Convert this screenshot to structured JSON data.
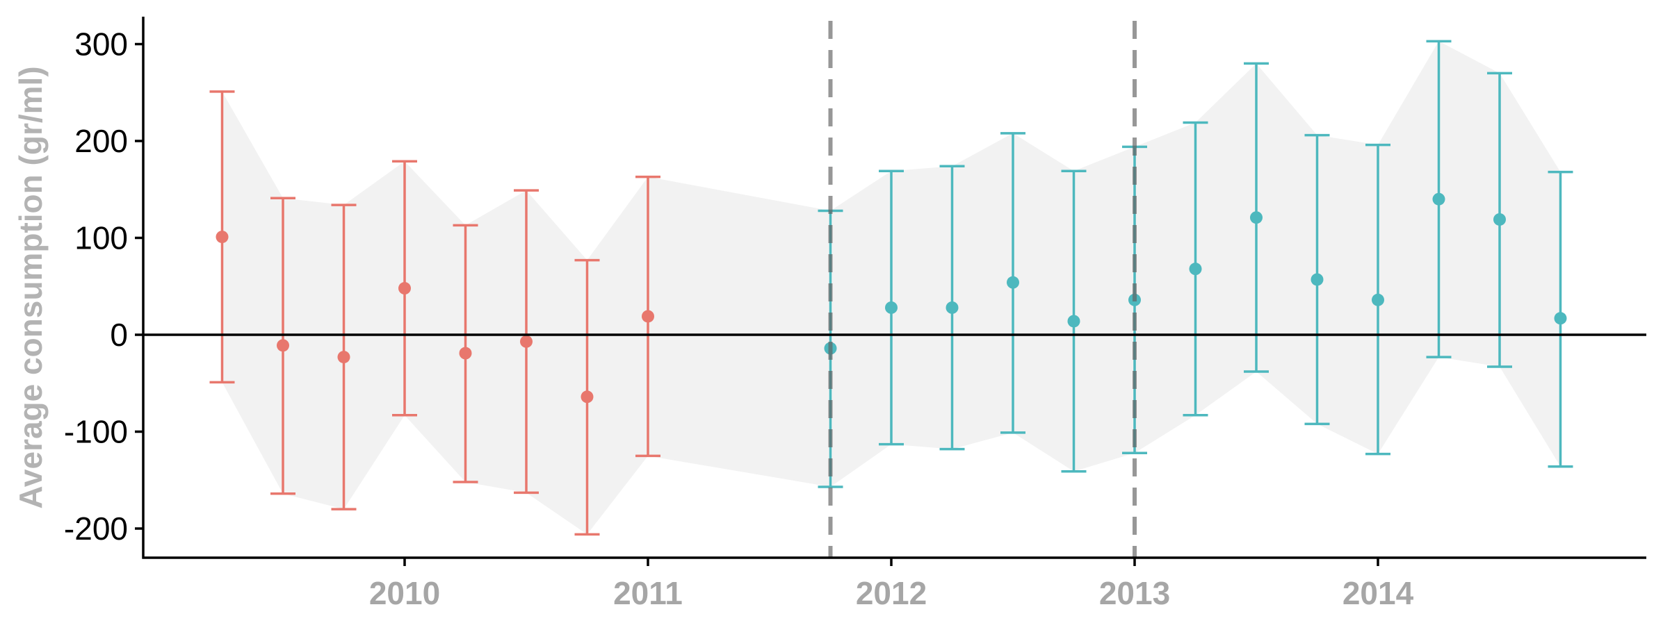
{
  "chart_data": {
    "type": "scatter",
    "title": "",
    "xlabel": "",
    "ylabel": "Average consumption (gr/ml)",
    "xlim": [
      2009.0,
      2015.1
    ],
    "ylim": [
      -230,
      330
    ],
    "y_ticks": [
      300,
      200,
      100,
      0,
      -100,
      -200
    ],
    "x_ticks": [
      {
        "value": 2010,
        "label": "2010"
      },
      {
        "value": 2011,
        "label": "2011"
      },
      {
        "value": 2012,
        "label": "2012"
      },
      {
        "value": 2013,
        "label": "2013"
      },
      {
        "value": 2014,
        "label": "2014"
      }
    ],
    "reference_line_y": 0,
    "vertical_dashed_lines_x": [
      2011.75,
      2013.0
    ],
    "grid": false,
    "legend": "none",
    "ribbon_color": "#f2f2f2",
    "series": [
      {
        "color": "#e8776d",
        "points": [
          {
            "x": 2009.25,
            "y": 101,
            "low": -49,
            "high": 251
          },
          {
            "x": 2009.5,
            "y": -11,
            "low": -164,
            "high": 141
          },
          {
            "x": 2009.75,
            "y": -23,
            "low": -180,
            "high": 134
          },
          {
            "x": 2010.0,
            "y": 48,
            "low": -83,
            "high": 179
          },
          {
            "x": 2010.25,
            "y": -19,
            "low": -152,
            "high": 113
          },
          {
            "x": 2010.5,
            "y": -7,
            "low": -163,
            "high": 149
          },
          {
            "x": 2010.75,
            "y": -64,
            "low": -206,
            "high": 77
          },
          {
            "x": 2011.0,
            "y": 19,
            "low": -125,
            "high": 163
          }
        ]
      },
      {
        "color": "#4db8be",
        "points": [
          {
            "x": 2011.75,
            "y": -14,
            "low": -157,
            "high": 128
          },
          {
            "x": 2012.0,
            "y": 28,
            "low": -113,
            "high": 169
          },
          {
            "x": 2012.25,
            "y": 28,
            "low": -118,
            "high": 174
          },
          {
            "x": 2012.5,
            "y": 54,
            "low": -101,
            "high": 208
          },
          {
            "x": 2012.75,
            "y": 14,
            "low": -141,
            "high": 169
          },
          {
            "x": 2013.0,
            "y": 36,
            "low": -122,
            "high": 194
          },
          {
            "x": 2013.25,
            "y": 68,
            "low": -83,
            "high": 219
          },
          {
            "x": 2013.5,
            "y": 121,
            "low": -38,
            "high": 280
          },
          {
            "x": 2013.75,
            "y": 57,
            "low": -92,
            "high": 206
          },
          {
            "x": 2014.0,
            "y": 36,
            "low": -123,
            "high": 196
          },
          {
            "x": 2014.25,
            "y": 140,
            "low": -23,
            "high": 303
          },
          {
            "x": 2014.5,
            "y": 119,
            "low": -33,
            "high": 270
          },
          {
            "x": 2014.75,
            "y": 17,
            "low": -136,
            "high": 168
          }
        ]
      }
    ]
  }
}
